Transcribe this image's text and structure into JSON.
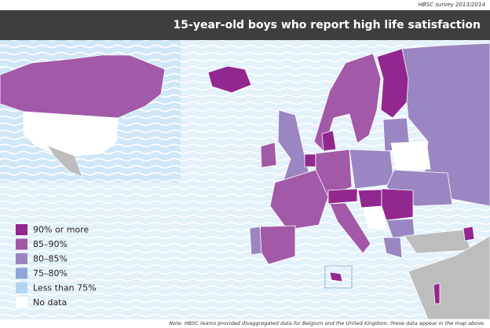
{
  "header": {
    "source": "HBSC survey 2013/2014",
    "title": "15-year-old boys who report high life satisfaction"
  },
  "legend": {
    "items": [
      {
        "label": "90% or more",
        "color": "#92278f"
      },
      {
        "label": "85–90%",
        "color": "#a25aa8"
      },
      {
        "label": "80–85%",
        "color": "#9a86c2"
      },
      {
        "label": "75–80%",
        "color": "#8fa5d6"
      },
      {
        "label": "Less than 75%",
        "color": "#b3d6f0"
      },
      {
        "label": "No data",
        "color": "#ffffff"
      }
    ]
  },
  "note": {
    "label": "Note:",
    "text": "HBSC teams provided disaggregated data for Belgium and the United Kingdom; these data appear in the map above."
  }
}
